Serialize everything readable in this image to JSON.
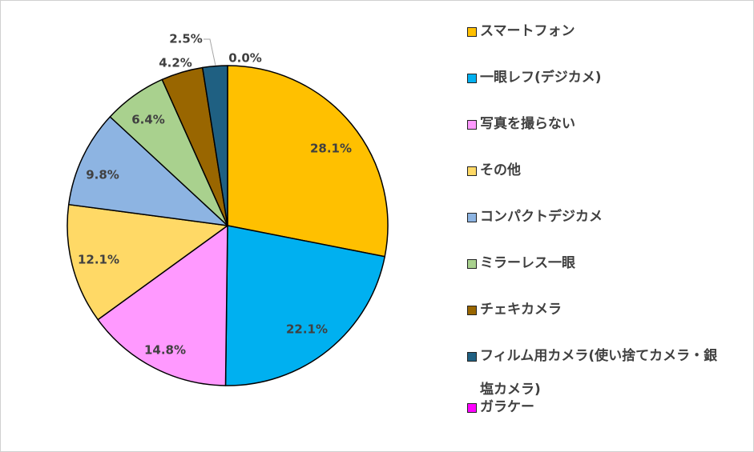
{
  "chart_data": {
    "type": "pie",
    "title": "",
    "slices": [
      {
        "label": "スマートフォン",
        "value": 28.1,
        "color": "#FFC000",
        "display": "28.1%"
      },
      {
        "label": "一眼レフ(デジカメ)",
        "value": 22.1,
        "color": "#00B0F0",
        "display": "22.1%"
      },
      {
        "label": "写真を撮らない",
        "value": 14.8,
        "color": "#FF99FF",
        "display": "14.8%"
      },
      {
        "label": "その他",
        "value": 12.1,
        "color": "#FFD966",
        "display": "12.1%"
      },
      {
        "label": "コンパクトデジカメ",
        "value": 9.8,
        "color": "#8DB4E2",
        "display": "9.8%"
      },
      {
        "label": "ミラーレス一眼",
        "value": 6.4,
        "color": "#A9D18E",
        "display": "6.4%"
      },
      {
        "label": "チェキカメラ",
        "value": 4.2,
        "color": "#996600",
        "display": "4.2%"
      },
      {
        "label": "フィルム用カメラ(使い捨てカメラ・銀塩カメラ)",
        "value": 2.5,
        "color": "#1F6082",
        "display": "2.5%"
      },
      {
        "label": "ガラケー",
        "value": 0.0,
        "color": "#FF00FF",
        "display": "0.0%"
      }
    ],
    "legend_position": "right"
  }
}
